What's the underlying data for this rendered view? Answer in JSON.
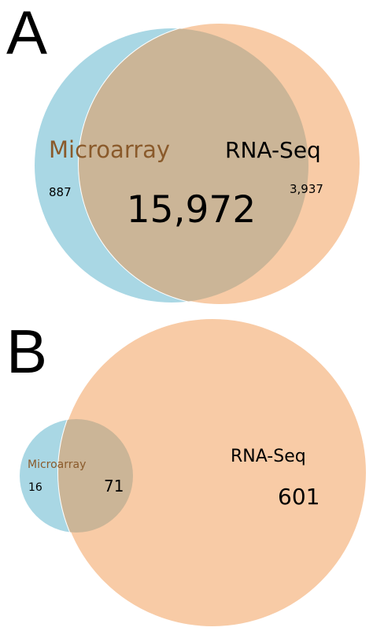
{
  "panels": [
    {
      "letter": "A",
      "left_label": "Microarray",
      "right_label": "RNA-Seq",
      "left_only": "887",
      "overlap": "15,972",
      "right_only": "3,937"
    },
    {
      "letter": "B",
      "left_label": "Microarray",
      "right_label": "RNA-Seq",
      "left_only": "16",
      "overlap": "71",
      "right_only": "601"
    }
  ],
  "colors": {
    "microarray": "#a9d7e4",
    "rnaseq": "#f8cba6",
    "overlap": "#cbb597",
    "outline": "#ffffff",
    "microarray_label": "#8a5a2b",
    "text": "#000000"
  }
}
